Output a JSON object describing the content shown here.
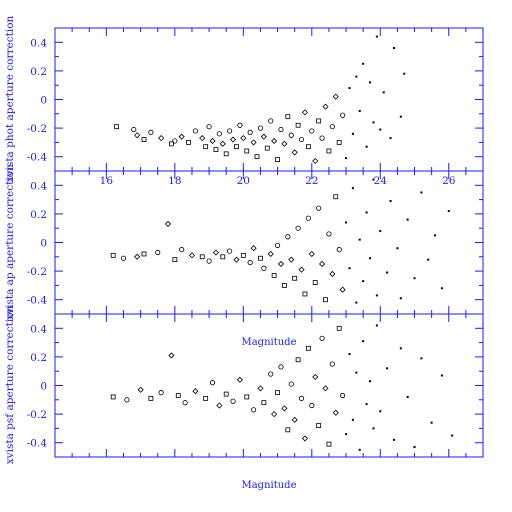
{
  "colors": {
    "axis": "#1a1aff",
    "points": "#000000",
    "background": "#ffffff"
  },
  "chart_data": [
    {
      "type": "scatter",
      "ylabel": "xvista phot aperture correction",
      "xlabel": "",
      "xlim": [
        14.5,
        27
      ],
      "ylim": [
        -0.5,
        0.5
      ],
      "x_tick_labels": [
        "16",
        "18",
        "20",
        "22",
        "24",
        "26"
      ],
      "y_tick_labels": [
        "0.4",
        "0.2",
        "0",
        "-0.2",
        "-0.4"
      ],
      "grid": false,
      "points": [
        [
          16.3,
          -0.19
        ],
        [
          16.8,
          -0.21
        ],
        [
          16.9,
          -0.25
        ],
        [
          17.1,
          -0.28
        ],
        [
          17.3,
          -0.23
        ],
        [
          17.6,
          -0.27
        ],
        [
          17.9,
          -0.31
        ],
        [
          18.0,
          -0.29
        ],
        [
          18.2,
          -0.26
        ],
        [
          18.4,
          -0.3
        ],
        [
          18.6,
          -0.22
        ],
        [
          18.8,
          -0.27
        ],
        [
          18.9,
          -0.33
        ],
        [
          19.0,
          -0.19
        ],
        [
          19.1,
          -0.29
        ],
        [
          19.2,
          -0.35
        ],
        [
          19.3,
          -0.24
        ],
        [
          19.4,
          -0.31
        ],
        [
          19.5,
          -0.38
        ],
        [
          19.6,
          -0.22
        ],
        [
          19.7,
          -0.28
        ],
        [
          19.8,
          -0.33
        ],
        [
          19.9,
          -0.18
        ],
        [
          20.0,
          -0.27
        ],
        [
          20.1,
          -0.36
        ],
        [
          20.2,
          -0.23
        ],
        [
          20.3,
          -0.3
        ],
        [
          20.4,
          -0.4
        ],
        [
          20.5,
          -0.2
        ],
        [
          20.6,
          -0.26
        ],
        [
          20.7,
          -0.34
        ],
        [
          20.8,
          -0.15
        ],
        [
          20.9,
          -0.29
        ],
        [
          21.0,
          -0.42
        ],
        [
          21.1,
          -0.21
        ],
        [
          21.2,
          -0.31
        ],
        [
          21.3,
          -0.12
        ],
        [
          21.4,
          -0.25
        ],
        [
          21.5,
          -0.37
        ],
        [
          21.6,
          -0.18
        ],
        [
          21.7,
          -0.28
        ],
        [
          21.8,
          -0.09
        ],
        [
          21.9,
          -0.33
        ],
        [
          22.0,
          -0.22
        ],
        [
          22.1,
          -0.43
        ],
        [
          22.2,
          -0.15
        ],
        [
          22.3,
          -0.27
        ],
        [
          22.4,
          -0.05
        ],
        [
          22.5,
          -0.36
        ],
        [
          22.6,
          -0.19
        ],
        [
          22.7,
          0.02
        ],
        [
          22.8,
          -0.3
        ],
        [
          22.9,
          -0.11
        ],
        [
          23.0,
          -0.41
        ],
        [
          23.1,
          0.08
        ],
        [
          23.2,
          -0.24
        ],
        [
          23.3,
          0.16
        ],
        [
          23.4,
          -0.08
        ],
        [
          23.5,
          0.25
        ],
        [
          23.6,
          -0.33
        ],
        [
          23.7,
          0.12
        ],
        [
          23.8,
          -0.16
        ],
        [
          23.9,
          0.44
        ],
        [
          24.0,
          -0.21
        ],
        [
          24.1,
          0.05
        ],
        [
          24.3,
          -0.27
        ],
        [
          24.4,
          0.36
        ],
        [
          24.6,
          -0.12
        ],
        [
          24.7,
          0.18
        ]
      ]
    },
    {
      "type": "scatter",
      "ylabel": "xvista ap aperture correction",
      "xlabel": "Magnitude",
      "xlim": [
        14.5,
        27
      ],
      "ylim": [
        -0.5,
        0.5
      ],
      "x_tick_labels": [],
      "y_tick_labels": [
        "0.4",
        "0.2",
        "0",
        "-0.2",
        "-0.4"
      ],
      "grid": false,
      "points": [
        [
          16.2,
          -0.09
        ],
        [
          16.5,
          -0.11
        ],
        [
          16.9,
          -0.1
        ],
        [
          17.1,
          -0.08
        ],
        [
          17.5,
          -0.07
        ],
        [
          17.8,
          0.13
        ],
        [
          18.0,
          -0.12
        ],
        [
          18.2,
          -0.05
        ],
        [
          18.5,
          -0.09
        ],
        [
          18.8,
          -0.1
        ],
        [
          19.0,
          -0.13
        ],
        [
          19.2,
          -0.07
        ],
        [
          19.4,
          -0.1
        ],
        [
          19.6,
          -0.06
        ],
        [
          19.8,
          -0.12
        ],
        [
          20.0,
          -0.09
        ],
        [
          20.2,
          -0.14
        ],
        [
          20.3,
          -0.04
        ],
        [
          20.5,
          -0.11
        ],
        [
          20.6,
          -0.18
        ],
        [
          20.8,
          -0.08
        ],
        [
          20.9,
          -0.23
        ],
        [
          21.0,
          -0.02
        ],
        [
          21.1,
          -0.15
        ],
        [
          21.2,
          -0.3
        ],
        [
          21.3,
          0.04
        ],
        [
          21.4,
          -0.12
        ],
        [
          21.5,
          -0.25
        ],
        [
          21.6,
          0.1
        ],
        [
          21.7,
          -0.19
        ],
        [
          21.8,
          -0.36
        ],
        [
          21.9,
          0.17
        ],
        [
          22.0,
          -0.08
        ],
        [
          22.1,
          -0.28
        ],
        [
          22.2,
          0.24
        ],
        [
          22.3,
          -0.15
        ],
        [
          22.4,
          -0.4
        ],
        [
          22.5,
          0.06
        ],
        [
          22.6,
          -0.22
        ],
        [
          22.7,
          0.32
        ],
        [
          22.8,
          -0.05
        ],
        [
          22.9,
          -0.33
        ],
        [
          23.0,
          0.14
        ],
        [
          23.1,
          -0.18
        ],
        [
          23.2,
          0.38
        ],
        [
          23.3,
          -0.42
        ],
        [
          23.4,
          0.02
        ],
        [
          23.5,
          -0.27
        ],
        [
          23.6,
          0.21
        ],
        [
          23.7,
          -0.11
        ],
        [
          23.8,
          0.44
        ],
        [
          23.9,
          -0.37
        ],
        [
          24.0,
          0.08
        ],
        [
          24.2,
          -0.21
        ],
        [
          24.3,
          0.29
        ],
        [
          24.5,
          -0.04
        ],
        [
          24.6,
          -0.39
        ],
        [
          24.8,
          0.16
        ],
        [
          25.0,
          -0.25
        ],
        [
          25.2,
          0.35
        ],
        [
          25.4,
          -0.12
        ],
        [
          25.6,
          0.05
        ],
        [
          25.8,
          -0.32
        ],
        [
          26.0,
          0.22
        ]
      ]
    },
    {
      "type": "scatter",
      "ylabel": "xvista psf aperture correction",
      "xlabel": "Magnitude",
      "xlim": [
        14.5,
        27
      ],
      "ylim": [
        -0.5,
        0.5
      ],
      "x_tick_labels": [],
      "y_tick_labels": [
        "0.4",
        "0.2",
        "0",
        "-0.2",
        "-0.4"
      ],
      "grid": false,
      "points": [
        [
          16.2,
          -0.08
        ],
        [
          16.6,
          -0.1
        ],
        [
          17.0,
          -0.03
        ],
        [
          17.3,
          -0.09
        ],
        [
          17.6,
          -0.05
        ],
        [
          17.9,
          0.21
        ],
        [
          18.1,
          -0.07
        ],
        [
          18.3,
          -0.12
        ],
        [
          18.6,
          -0.04
        ],
        [
          18.9,
          -0.09
        ],
        [
          19.1,
          0.02
        ],
        [
          19.3,
          -0.14
        ],
        [
          19.5,
          -0.06
        ],
        [
          19.7,
          -0.11
        ],
        [
          19.9,
          0.04
        ],
        [
          20.1,
          -0.08
        ],
        [
          20.3,
          -0.17
        ],
        [
          20.5,
          -0.02
        ],
        [
          20.6,
          -0.12
        ],
        [
          20.8,
          0.08
        ],
        [
          20.9,
          -0.2
        ],
        [
          21.0,
          -0.05
        ],
        [
          21.1,
          0.13
        ],
        [
          21.2,
          -0.16
        ],
        [
          21.3,
          -0.31
        ],
        [
          21.4,
          0.01
        ],
        [
          21.5,
          -0.24
        ],
        [
          21.6,
          0.18
        ],
        [
          21.7,
          -0.09
        ],
        [
          21.8,
          -0.37
        ],
        [
          21.9,
          0.26
        ],
        [
          22.0,
          -0.14
        ],
        [
          22.1,
          0.06
        ],
        [
          22.2,
          -0.28
        ],
        [
          22.3,
          0.33
        ],
        [
          22.4,
          -0.02
        ],
        [
          22.5,
          -0.41
        ],
        [
          22.6,
          0.15
        ],
        [
          22.7,
          -0.19
        ],
        [
          22.8,
          0.4
        ],
        [
          22.9,
          -0.07
        ],
        [
          23.0,
          -0.34
        ],
        [
          23.1,
          0.22
        ],
        [
          23.2,
          -0.24
        ],
        [
          23.3,
          0.09
        ],
        [
          23.4,
          -0.45
        ],
        [
          23.5,
          0.31
        ],
        [
          23.6,
          -0.13
        ],
        [
          23.7,
          0.03
        ],
        [
          23.8,
          -0.3
        ],
        [
          23.9,
          0.42
        ],
        [
          24.0,
          -0.18
        ],
        [
          24.2,
          0.12
        ],
        [
          24.4,
          -0.38
        ],
        [
          24.6,
          0.26
        ],
        [
          24.8,
          -0.08
        ],
        [
          25.0,
          -0.43
        ],
        [
          25.2,
          0.19
        ],
        [
          25.5,
          -0.26
        ],
        [
          25.8,
          0.07
        ],
        [
          26.1,
          -0.35
        ]
      ]
    }
  ]
}
